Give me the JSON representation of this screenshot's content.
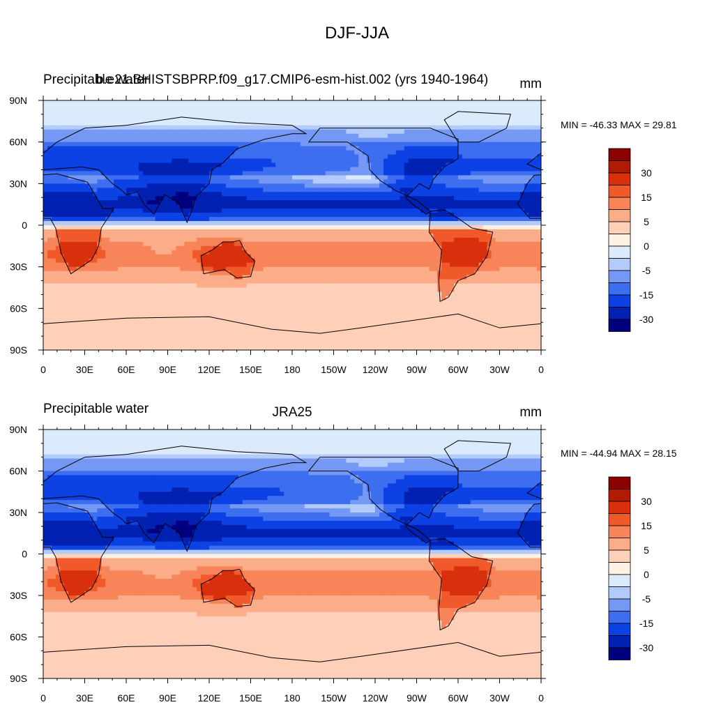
{
  "figure_title": "DJF-JJA",
  "colorbar_labels": [
    "30",
    "15",
    "5",
    "0",
    "-5",
    "-15",
    "-30"
  ],
  "colors": {
    "levels": [
      "#00007f",
      "#0021b1",
      "#0c42e4",
      "#3d6ef0",
      "#7598f4",
      "#b3cbfa",
      "#dbebfb",
      "#fff0e4",
      "#fed0b9",
      "#fbac88",
      "#f8855a",
      "#f05a2a",
      "#d8300c",
      "#b11a03",
      "#8b0000"
    ],
    "coast": "#000000",
    "ocean_bg": "#7ea4f5"
  },
  "chart_data": [
    {
      "type": "heatmap",
      "left_title": "Precipitable water",
      "center_title": "b.e21.BHISTSBPRP.f09_g17.CMIP6-esm-hist.002 (yrs 1940-1964)",
      "units": "mm",
      "min_max_text": "MIN = -46.33 MAX =  29.81",
      "min": -46.33,
      "max": 29.81,
      "xlim": [
        0,
        360
      ],
      "ylim": [
        -90,
        90
      ],
      "x_ticks": [
        "0",
        "30E",
        "60E",
        "90E",
        "120E",
        "150E",
        "180",
        "150W",
        "120W",
        "90W",
        "60W",
        "30W",
        "0"
      ],
      "y_ticks": [
        "90N",
        "60N",
        "30N",
        "0",
        "30S",
        "60S",
        "90S"
      ]
    },
    {
      "type": "heatmap",
      "left_title": "Precipitable water",
      "center_title": "JRA25",
      "units": "mm",
      "min_max_text": "MIN = -44.94 MAX =  28.15",
      "min": -44.94,
      "max": 28.15,
      "xlim": [
        0,
        360
      ],
      "ylim": [
        -90,
        90
      ],
      "x_ticks": [
        "0",
        "30E",
        "60E",
        "90E",
        "120E",
        "150E",
        "180",
        "150W",
        "120W",
        "90W",
        "60W",
        "30W",
        "0"
      ],
      "y_ticks": [
        "90N",
        "60N",
        "30N",
        "0",
        "30S",
        "60S",
        "90S"
      ]
    }
  ]
}
